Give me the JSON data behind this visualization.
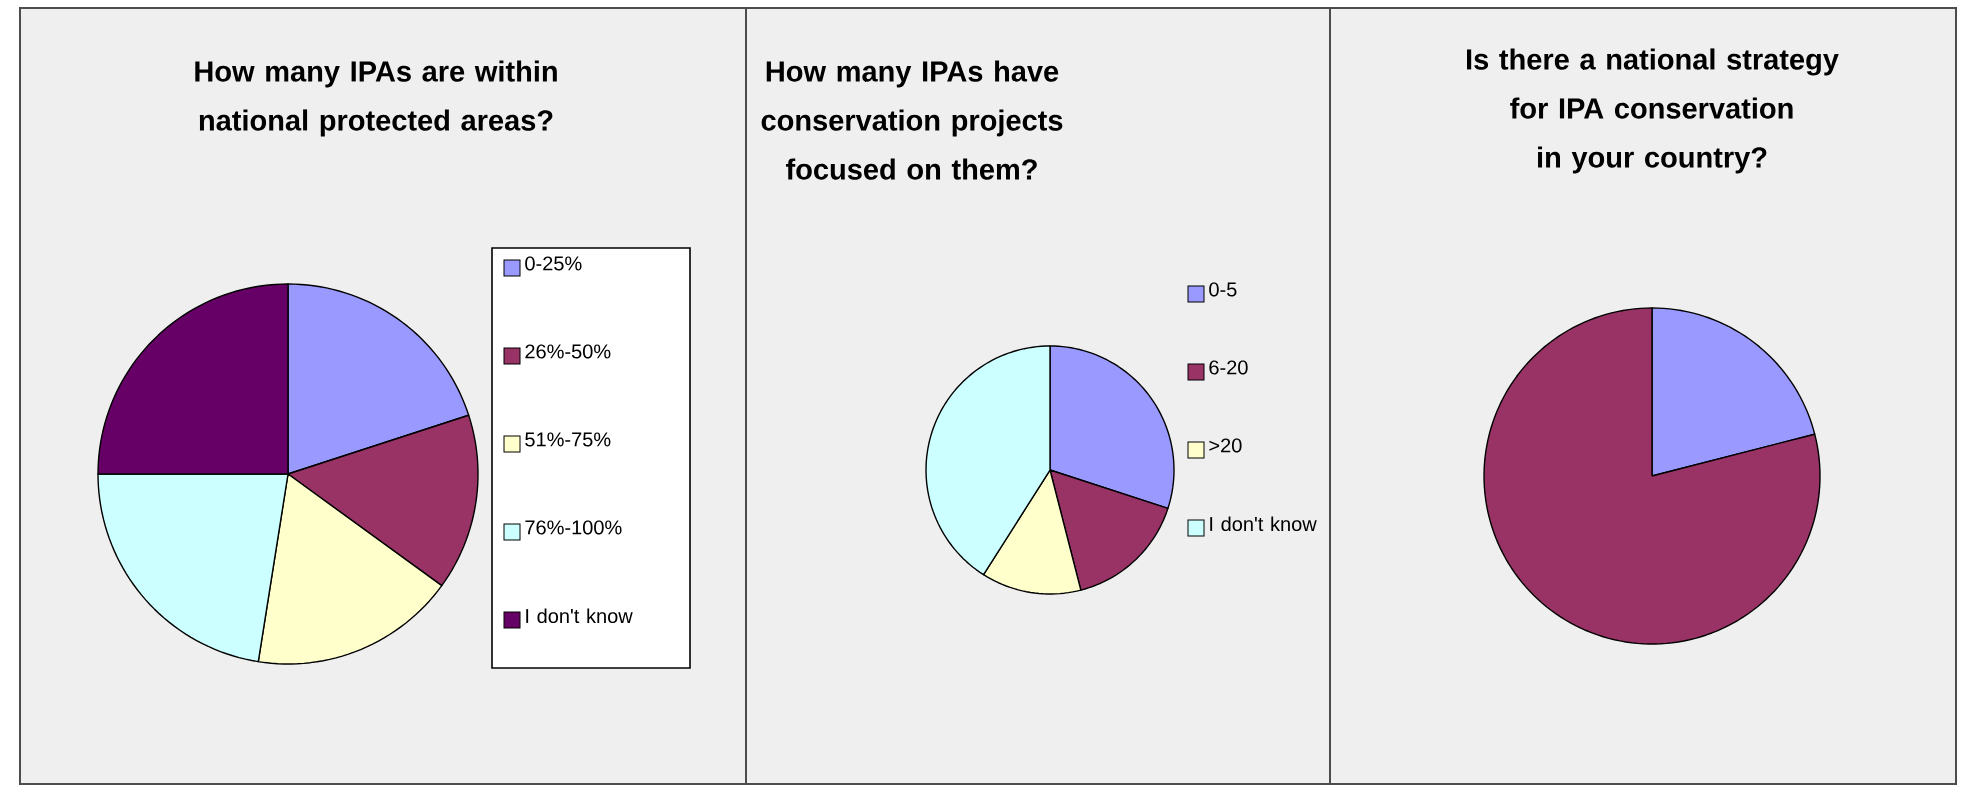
{
  "chart_data": [
    {
      "type": "pie",
      "title": "How many IPAs are within national protected areas?",
      "categories": [
        "0-25%",
        "26%-50%",
        "51%-75%",
        "76%-100%",
        "I don't know"
      ],
      "values": [
        20,
        15,
        17.5,
        22.5,
        25
      ],
      "colors": [
        "#9999ff",
        "#993366",
        "#ffffcc",
        "#ccffff",
        "#660066"
      ],
      "legend": "right"
    },
    {
      "type": "pie",
      "title": "How many IPAs have conservation projects focused on them?",
      "categories": [
        "0-5",
        "6-20",
        ">20",
        "I don't know"
      ],
      "values": [
        30,
        16,
        13,
        41
      ],
      "colors": [
        "#9999ff",
        "#993366",
        "#ffffcc",
        "#ccffff"
      ],
      "legend": "right"
    },
    {
      "type": "pie",
      "title": "Is there a national strategy for IPA conservation in your country?",
      "categories": [
        null,
        null
      ],
      "values": [
        21,
        79
      ],
      "colors": [
        "#9999ff",
        "#993366"
      ]
    }
  ]
}
